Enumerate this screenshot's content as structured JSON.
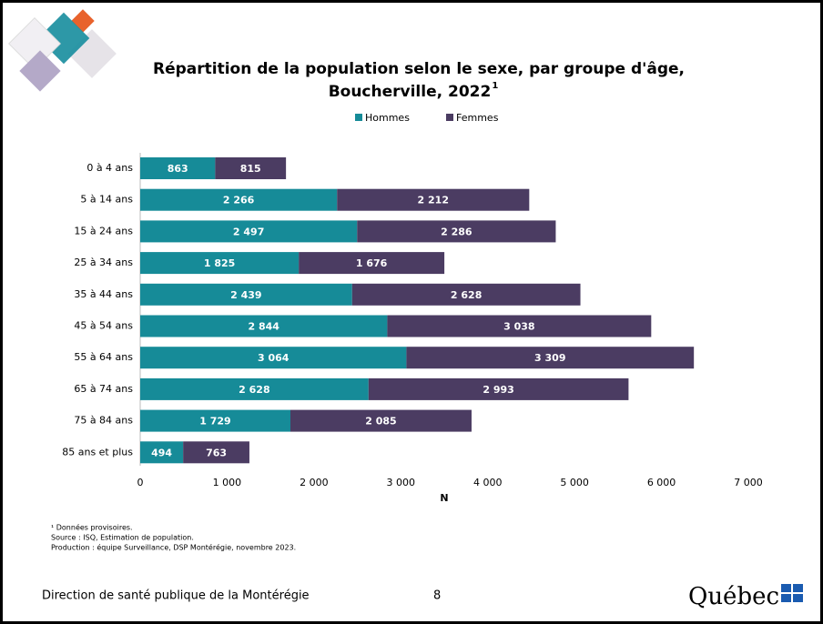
{
  "chart_data": {
    "type": "stacked-bar-horizontal",
    "title": [
      "Répartition de la population selon le sexe, par groupe d'âge,",
      "Boucherville, 2022"
    ],
    "title_note": "1",
    "categories": [
      "0 à 4 ans",
      "5 à 14 ans",
      "15 à 24 ans",
      "25 à 34 ans",
      "35 à 44 ans",
      "45 à 54 ans",
      "55 à 64 ans",
      "65 à 74 ans",
      "75 à 84 ans",
      "85 ans et plus"
    ],
    "series": [
      {
        "name": "Hommes",
        "color": "#168b98",
        "values": [
          863,
          2266,
          2497,
          1825,
          2439,
          2844,
          3064,
          2628,
          1729,
          494
        ],
        "value_labels": [
          "863",
          "2 266",
          "2 497",
          "1 825",
          "2 439",
          "2 844",
          "3 064",
          "2 628",
          "1 729",
          "494"
        ]
      },
      {
        "name": "Femmes",
        "color": "#4b3c62",
        "values": [
          815,
          2212,
          2286,
          1676,
          2628,
          3038,
          3309,
          2993,
          2085,
          763
        ],
        "value_labels": [
          "815",
          "2 212",
          "2 286",
          "1 676",
          "2 628",
          "3 038",
          "3 309",
          "2 993",
          "2 085",
          "763"
        ]
      }
    ],
    "xlabel": "N",
    "xlim": [
      0,
      7000
    ],
    "xticks": [
      0,
      {
        "value": 1000,
        "label": "1 000"
      },
      {
        "value": 2000,
        "label": "2 000"
      },
      {
        "value": 3000,
        "label": "3 000"
      },
      {
        "value": 4000,
        "label": "4 000"
      },
      {
        "value": 5000,
        "label": "5 000"
      },
      {
        "value": 6000,
        "label": "6 000"
      },
      {
        "value": 7000,
        "label": "7 000"
      }
    ],
    "grid": false,
    "legend": "top"
  },
  "footnotes": [
    "¹ Données provisoires.",
    "Source : ISQ, Estimation de population.",
    "Production : équipe Surveillance, DSP Montérégie, novembre 2023."
  ],
  "footer": {
    "left": "Direction de santé publique de la Montérégie",
    "page": "8",
    "logo": "Québec"
  }
}
